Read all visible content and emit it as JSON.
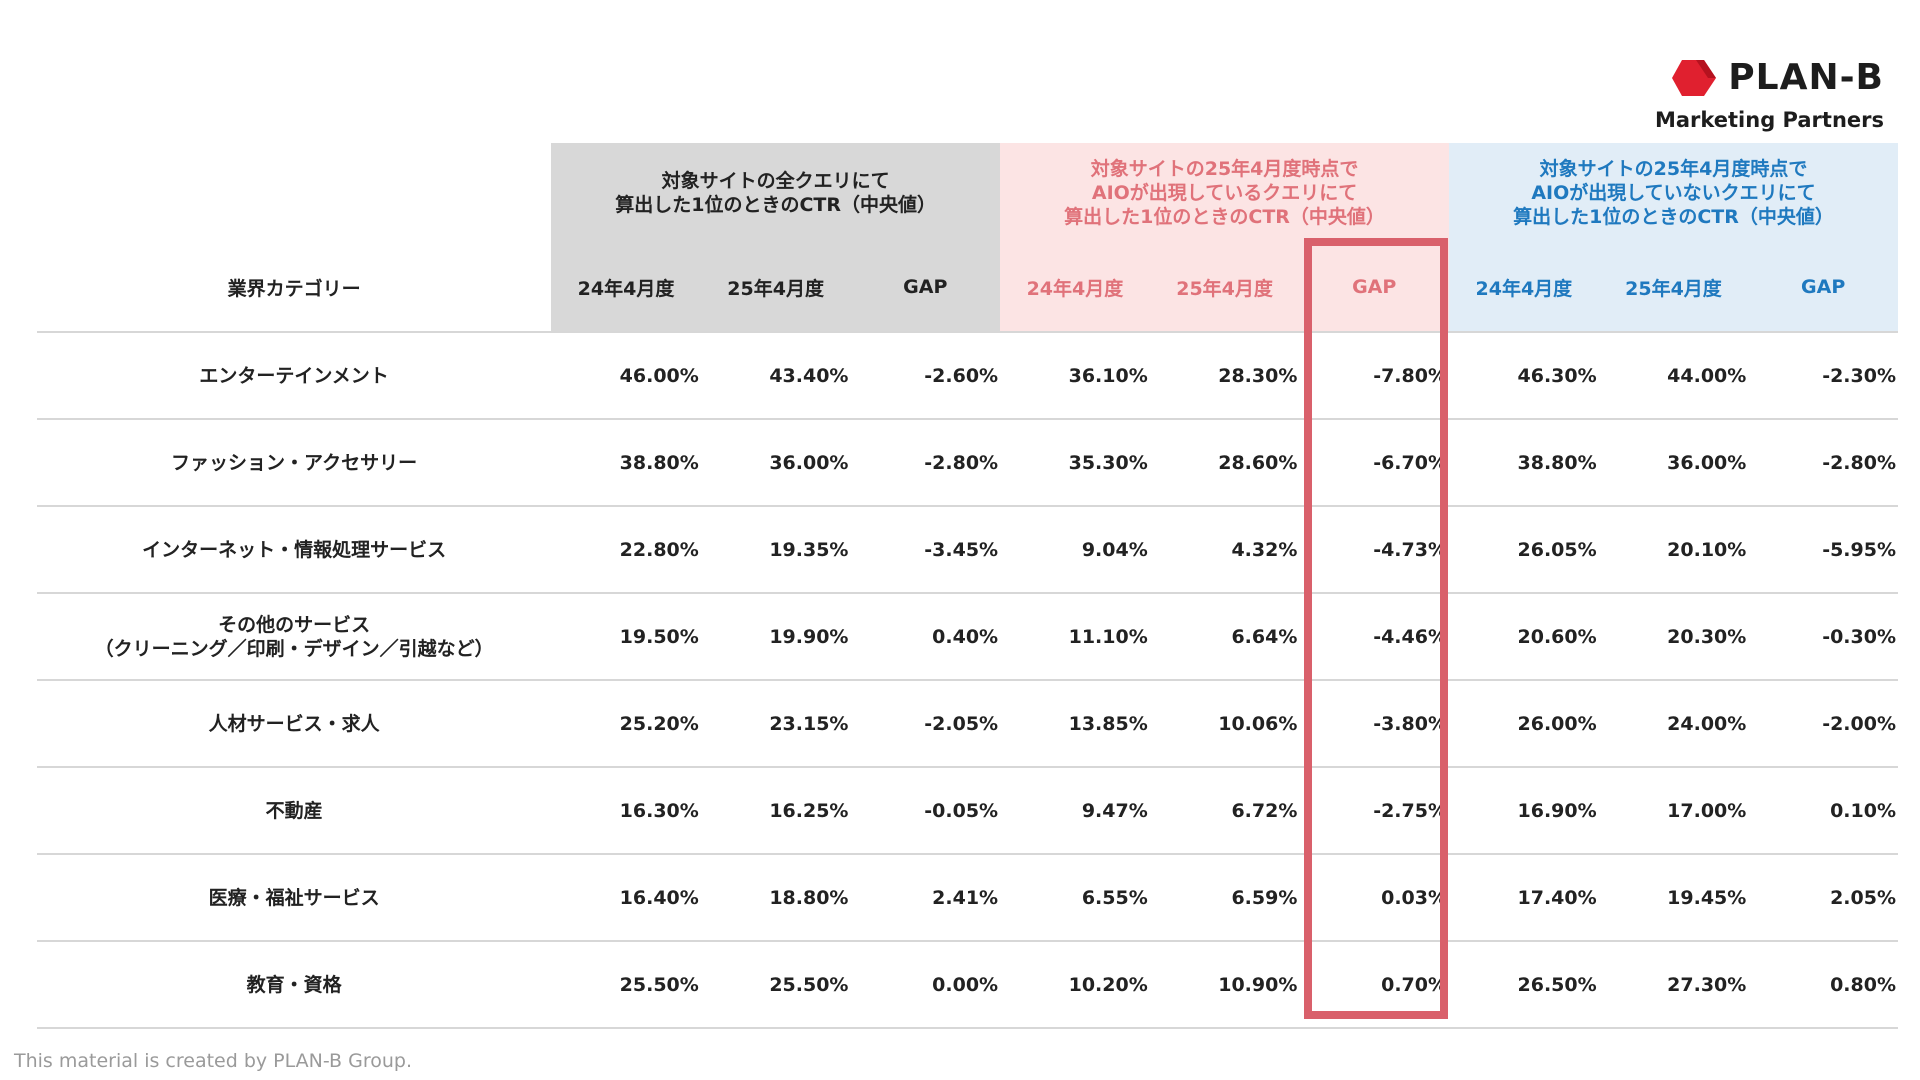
{
  "logo": {
    "name": "PLAN-B",
    "subtitle": "Marketing Partners",
    "mark_color": "#e0202f"
  },
  "colors": {
    "grey_group": "#d8d8d8",
    "pink_group": "#fce4e4",
    "blue_group": "#e1edf7",
    "pink_text": "#e0727a",
    "blue_text": "#1f79bf",
    "highlight": "#d9606b"
  },
  "table": {
    "category_header": "業界カテゴリー",
    "groups": [
      {
        "title_line1": "対象サイトの全クエリにて",
        "title_line2": "算出した1位のときのCTR（中央値）",
        "title_line3": ""
      },
      {
        "title_line1": "対象サイトの25年4月度時点で",
        "title_line2": "AIOが出現しているクエリにて",
        "title_line3": "算出した1位のときのCTR（中央値）"
      },
      {
        "title_line1": "対象サイトの25年4月度時点で",
        "title_line2": "AIOが出現していないクエリにて",
        "title_line3": "算出した1位のときのCTR（中央値）"
      }
    ],
    "columns": [
      "24年4月度",
      "25年4月度",
      "GAP",
      "24年4月度",
      "25年4月度",
      "GAP",
      "24年4月度",
      "25年4月度",
      "GAP"
    ],
    "rows": [
      {
        "category": [
          "エンターテインメント",
          ""
        ],
        "values": [
          "46.00%",
          "43.40%",
          "-2.60%",
          "36.10%",
          "28.30%",
          "-7.80%",
          "46.30%",
          "44.00%",
          "-2.30%"
        ]
      },
      {
        "category": [
          "ファッション・アクセサリー",
          ""
        ],
        "values": [
          "38.80%",
          "36.00%",
          "-2.80%",
          "35.30%",
          "28.60%",
          "-6.70%",
          "38.80%",
          "36.00%",
          "-2.80%"
        ]
      },
      {
        "category": [
          "インターネット・情報処理サービス",
          ""
        ],
        "values": [
          "22.80%",
          "19.35%",
          "-3.45%",
          "9.04%",
          "4.32%",
          "-4.73%",
          "26.05%",
          "20.10%",
          "-5.95%"
        ]
      },
      {
        "category": [
          "その他のサービス",
          "（クリーニング／印刷・デザイン／引越など）"
        ],
        "values": [
          "19.50%",
          "19.90%",
          "0.40%",
          "11.10%",
          "6.64%",
          "-4.46%",
          "20.60%",
          "20.30%",
          "-0.30%"
        ]
      },
      {
        "category": [
          "人材サービス・求人",
          ""
        ],
        "values": [
          "25.20%",
          "23.15%",
          "-2.05%",
          "13.85%",
          "10.06%",
          "-3.80%",
          "26.00%",
          "24.00%",
          "-2.00%"
        ]
      },
      {
        "category": [
          "不動産",
          ""
        ],
        "values": [
          "16.30%",
          "16.25%",
          "-0.05%",
          "9.47%",
          "6.72%",
          "-2.75%",
          "16.90%",
          "17.00%",
          "0.10%"
        ]
      },
      {
        "category": [
          "医療・福祉サービス",
          ""
        ],
        "values": [
          "16.40%",
          "18.80%",
          "2.41%",
          "6.55%",
          "6.59%",
          "0.03%",
          "17.40%",
          "19.45%",
          "2.05%"
        ]
      },
      {
        "category": [
          "教育・資格",
          ""
        ],
        "values": [
          "25.50%",
          "25.50%",
          "0.00%",
          "10.20%",
          "10.90%",
          "0.70%",
          "26.50%",
          "27.30%",
          "0.80%"
        ]
      }
    ]
  },
  "footer": {
    "text": "This material is created by PLAN-B Group."
  }
}
